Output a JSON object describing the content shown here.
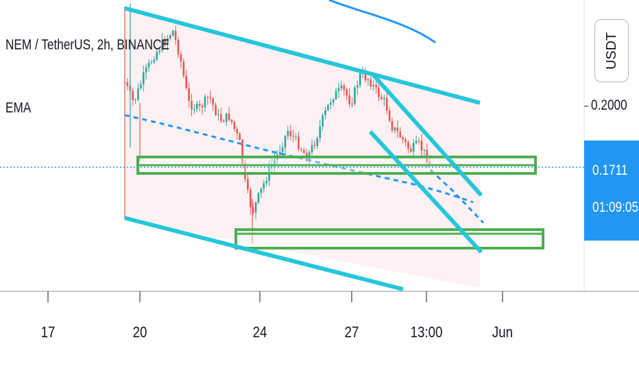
{
  "legend": {
    "title": "NEM / TetherUS, 2h, BINANCE",
    "indicator": "EMA"
  },
  "price_axis": {
    "currency_button": "USDT",
    "tick_label": "0.2000",
    "current_price": "0.1711",
    "countdown": "01:09:05"
  },
  "chart_data": {
    "type": "candlestick",
    "x_tick_labels": [
      "17",
      "20",
      "24",
      "27",
      "13:00",
      "Jun"
    ],
    "y_tick_labels": [
      "0.2000"
    ],
    "last_price": 0.1711,
    "colors": {
      "up_candle": "#26a69a",
      "down_candle": "#ef5350",
      "ema_line": "#2196f3",
      "channel_lines": "#26c6da",
      "support_zones": "#4caf50",
      "channel_fill": "#fdf1f3",
      "current_price_line": "#2196f3"
    }
  }
}
